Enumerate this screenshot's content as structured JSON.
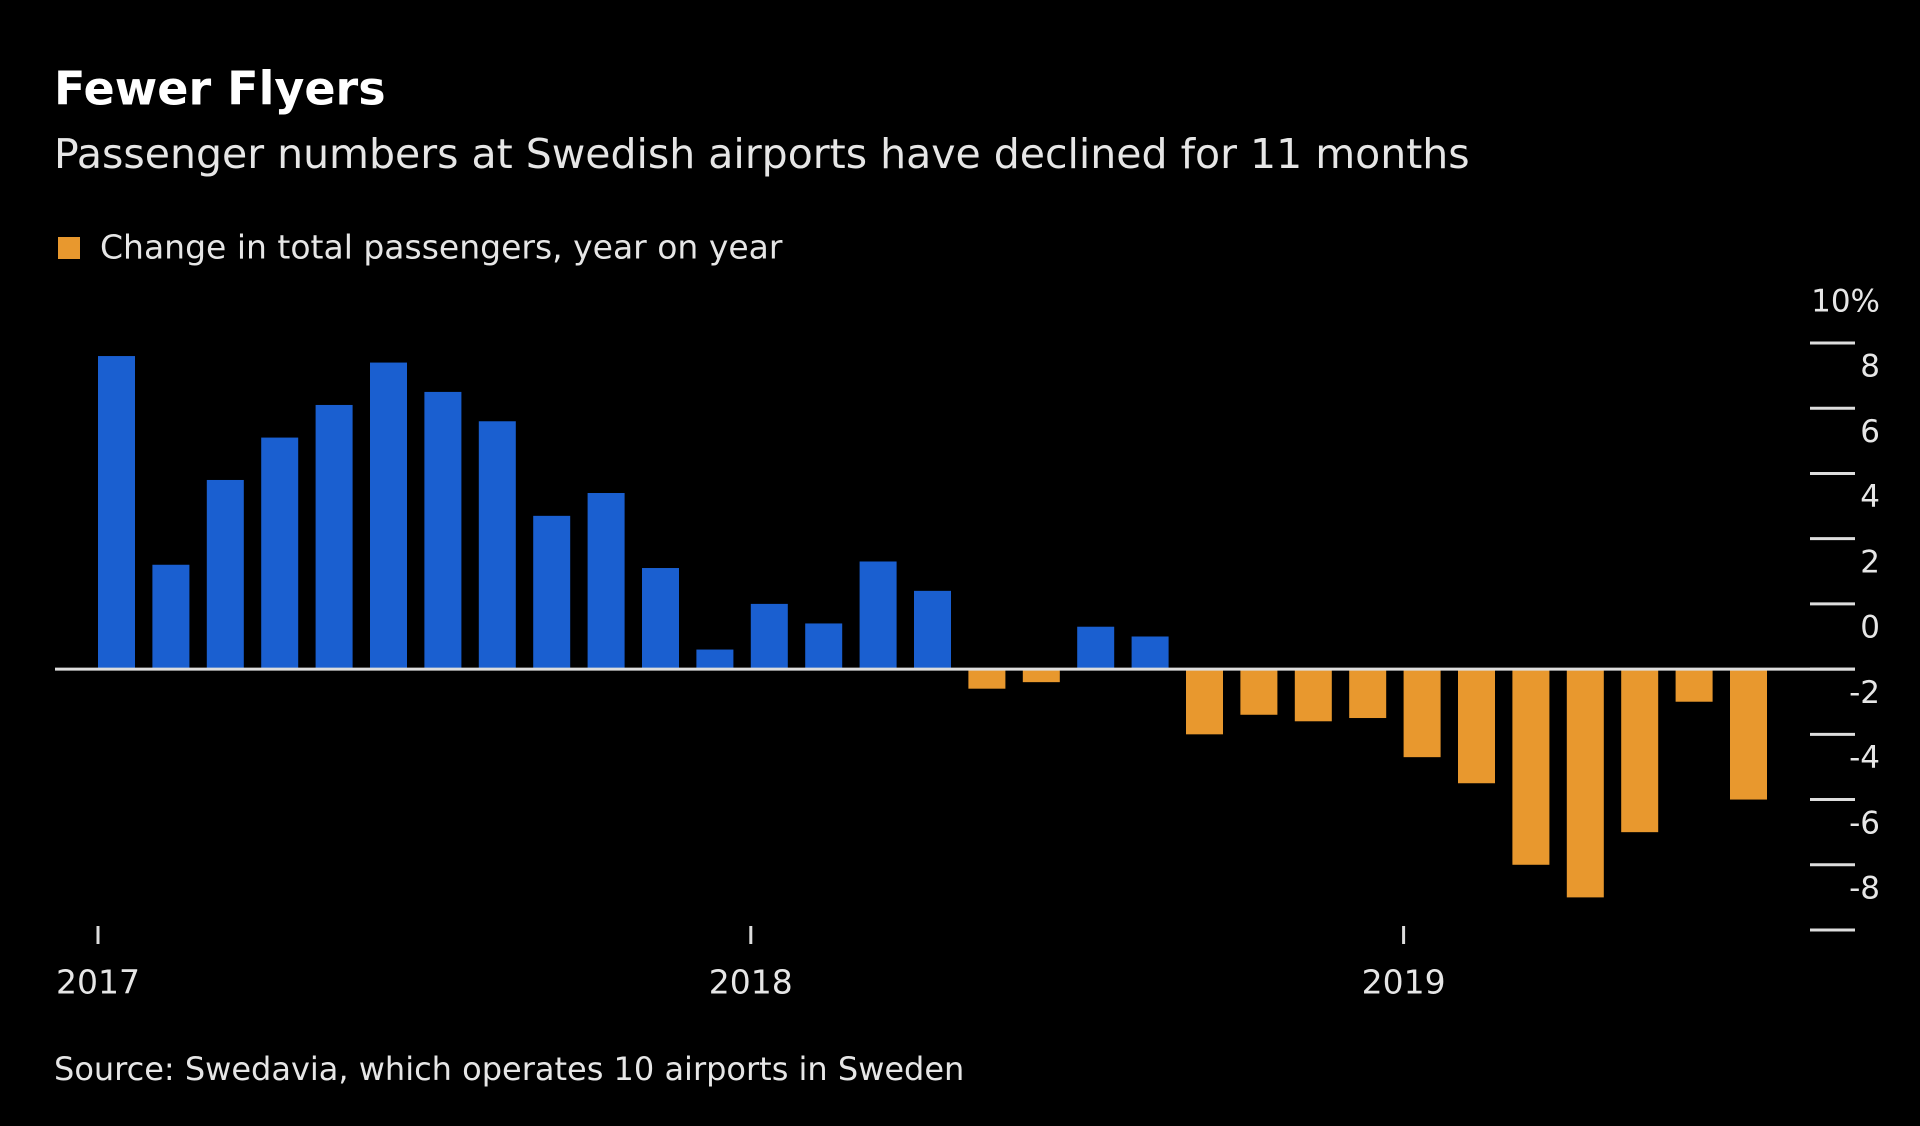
{
  "chart_data": {
    "type": "bar",
    "title": "Fewer Flyers",
    "subtitle": "Passenger numbers at Swedish airports have declined for 11 months",
    "legend": "Change in total passengers, year on year",
    "source": "Source: Swedavia, which operates 10 airports in Sweden",
    "categories": [
      "2017",
      null,
      null,
      null,
      null,
      null,
      null,
      null,
      null,
      null,
      null,
      null,
      "2018",
      null,
      null,
      null,
      null,
      null,
      null,
      null,
      null,
      null,
      null,
      null,
      "2019",
      null,
      null,
      null,
      null,
      null,
      null
    ],
    "values": [
      9.6,
      3.2,
      5.8,
      7.1,
      8.1,
      9.4,
      8.5,
      7.6,
      4.7,
      5.4,
      3.1,
      0.6,
      2.0,
      1.4,
      3.3,
      2.4,
      -0.6,
      -0.4,
      1.3,
      1.0,
      -2.0,
      -1.4,
      -1.6,
      -1.5,
      -2.7,
      -3.5,
      -6.0,
      -7.0,
      -5.0,
      -1.0,
      -4.0
    ],
    "color_positive": "#1a5fd0",
    "color_negative": "#e8982e",
    "ylim": [
      -8,
      10
    ],
    "yticks": [
      {
        "value": 10,
        "label": "10%"
      },
      8,
      6,
      4,
      2,
      0,
      -2,
      -4,
      -6,
      -8
    ]
  }
}
